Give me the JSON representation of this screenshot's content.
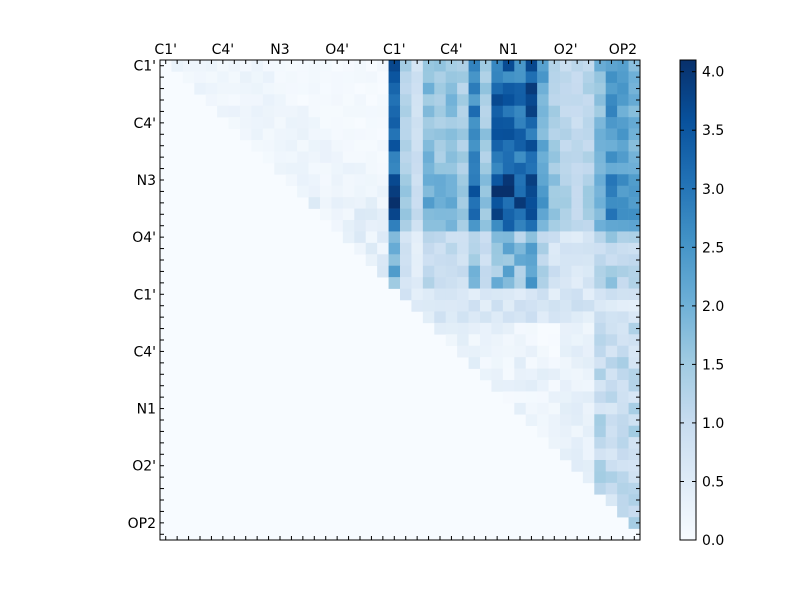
{
  "chart_data": {
    "type": "heatmap",
    "title": "",
    "xlabel": "",
    "ylabel": "",
    "size": 42,
    "colormap": "Blues",
    "upper_triangle_only": true,
    "x_tick_labels": [
      "C1'",
      "C4'",
      "N3",
      "O4'",
      "C1'",
      "C4'",
      "N1",
      "O2'",
      "OP2"
    ],
    "y_tick_labels": [
      "C1'",
      "C4'",
      "N3",
      "O4'",
      "C1'",
      "C4'",
      "N1",
      "O2'",
      "OP2"
    ],
    "tick_label_indices": [
      0,
      5,
      10,
      15,
      20,
      25,
      30,
      35,
      40
    ],
    "colorbar": {
      "range": [
        0.0,
        4.1
      ],
      "tick_values": [
        0.0,
        0.5,
        1.0,
        1.5,
        2.0,
        2.5,
        3.0,
        3.5,
        4.0
      ],
      "tick_labels": [
        "0.0",
        "0.5",
        "1.0",
        "1.5",
        "2.0",
        "2.5",
        "3.0",
        "3.5",
        "4.0"
      ]
    },
    "value_range": [
      0.0,
      4.1
    ],
    "matrix_blocks": {
      "nucleotide1_internal": {
        "rows": [
          0,
          19
        ],
        "cols": [
          0,
          19
        ],
        "approx_value": 0.2
      },
      "between_nucleotides": {
        "rows": [
          0,
          15
        ],
        "cols": [
          20,
          41
        ],
        "approx_value_range": [
          0.5,
          4.1
        ]
      },
      "between_nucleotides_O4": {
        "rows": [
          15,
          19
        ],
        "cols": [
          20,
          41
        ],
        "approx_value_range": [
          0.3,
          2.2
        ]
      },
      "nucleotide2_internal": {
        "rows": [
          20,
          41
        ],
        "cols": [
          20,
          41
        ],
        "approx_value_range": [
          0.0,
          1.5
        ]
      }
    }
  }
}
